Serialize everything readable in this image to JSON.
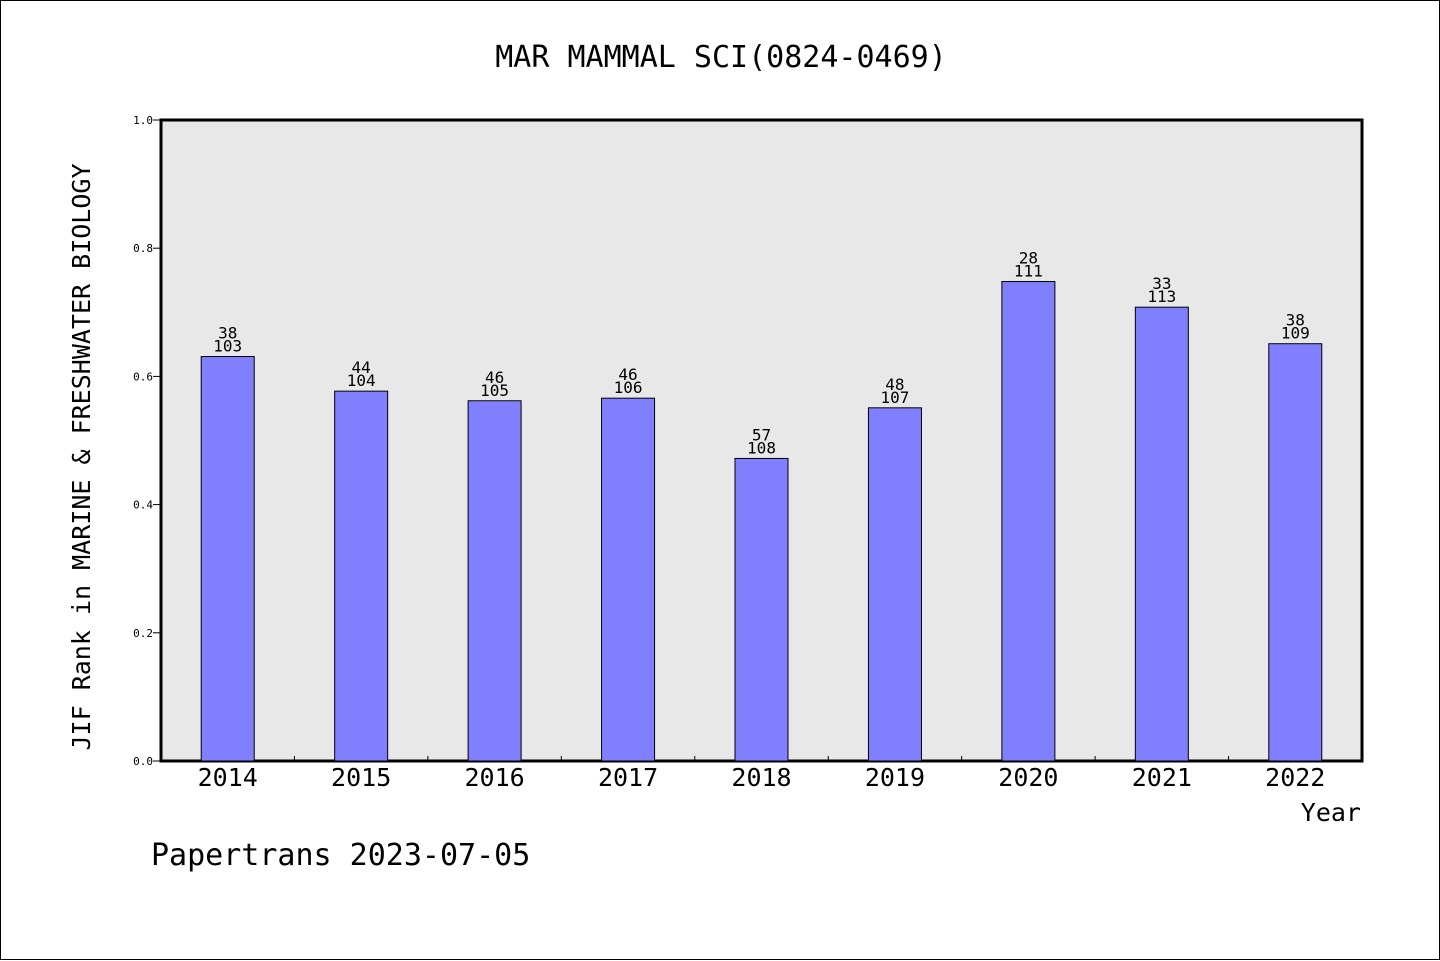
{
  "chart_data": {
    "type": "bar",
    "title": "MAR MAMMAL SCI(0824-0469)",
    "xlabel": "Year",
    "ylabel": "JIF Rank in MARINE & FRESHWATER BIOLOGY",
    "categories": [
      "2014",
      "2015",
      "2016",
      "2017",
      "2018",
      "2019",
      "2020",
      "2021",
      "2022"
    ],
    "values": [
      0.631,
      0.577,
      0.562,
      0.566,
      0.472,
      0.551,
      0.748,
      0.708,
      0.651
    ],
    "rank": [
      "38",
      "44",
      "46",
      "46",
      "57",
      "48",
      "28",
      "33",
      "38"
    ],
    "total": [
      "103",
      "104",
      "105",
      "106",
      "108",
      "107",
      "111",
      "113",
      "109"
    ],
    "ylim": [
      0,
      1.0
    ],
    "yticks": [
      "0.0",
      "0.2",
      "0.4",
      "0.6",
      "0.8",
      "1.0"
    ],
    "grid": false,
    "colors": {
      "bar": "#8080ff",
      "plot_background": "#e8e8e8",
      "outline": "#000000"
    }
  },
  "footer": "Papertrans 2023-07-05"
}
